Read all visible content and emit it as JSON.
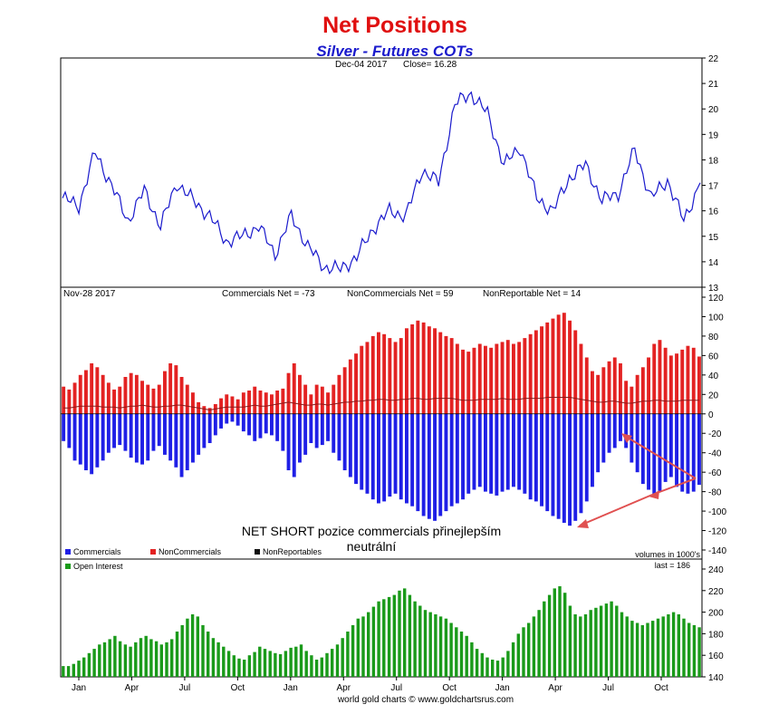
{
  "title": "Net Positions",
  "subtitle": "Silver - Futures COTs",
  "credit": "world gold charts © www.goldchartsrus.com",
  "colors": {
    "title": "#e01010",
    "subtitle": "#1a1acc",
    "price_line": "#1a1acc",
    "commercials": "#1f1fe6",
    "noncommercials": "#e32222",
    "nonreportables": "#111111",
    "open_interest": "#1a9a1a",
    "annotation_arrow": "#e05050"
  },
  "chart_data": [
    {
      "type": "line",
      "panel": "price",
      "header_date": "Dec-04  2017",
      "header_close": "Close= 16.28",
      "ylim": [
        13,
        22
      ],
      "yticks": [
        "13",
        "14",
        "15",
        "16",
        "17",
        "18",
        "19",
        "20",
        "21",
        "22"
      ],
      "grid": false,
      "series": [
        {
          "x": [
            0,
            4,
            8,
            12,
            16,
            20,
            24,
            28,
            32,
            36,
            40,
            44,
            48,
            52,
            56,
            60,
            64,
            68,
            72,
            76,
            80,
            84,
            88,
            92,
            96,
            100,
            104,
            108,
            112,
            116,
            120,
            124,
            128,
            132,
            136,
            140,
            144,
            148,
            152,
            156
          ],
          "values": [
            16.5,
            16.2,
            18.3,
            17.0,
            15.6,
            16.8,
            15.4,
            17.1,
            16.4,
            15.8,
            14.8,
            15.0,
            15.4,
            14.3,
            15.8,
            14.6,
            13.8,
            13.7,
            14.2,
            15.3,
            16.0,
            15.8,
            17.6,
            17.1,
            20.2,
            20.6,
            19.8,
            17.8,
            18.5,
            16.5,
            16.0,
            17.3,
            17.8,
            16.4,
            16.7,
            18.4,
            16.5,
            17.2,
            15.6,
            17.1
          ]
        }
      ]
    },
    {
      "type": "bar",
      "panel": "net_positions",
      "header_date": "Nov-28  2017",
      "header_values": [
        "Commercials Net = -73",
        "NonCommercials Net = 59",
        "NonReportable Net = 14"
      ],
      "ylim": [
        -140,
        120
      ],
      "yticks": [
        "-140",
        "-120",
        "-100",
        "-80",
        "-60",
        "-40",
        "-20",
        "0",
        "20",
        "40",
        "60",
        "80",
        "100",
        "120"
      ],
      "legend": [
        "Commercials",
        "NonCommercials",
        "NonReportables"
      ],
      "legend_position": "bottom-left",
      "volume_note": "volumes in 1000's",
      "annotation": "NET SHORT pozice commercials přinejlepším neutrální",
      "series": [
        {
          "name": "Commercials",
          "values": [
            -28,
            -35,
            -48,
            -52,
            -58,
            -62,
            -55,
            -48,
            -40,
            -35,
            -32,
            -38,
            -45,
            -50,
            -52,
            -48,
            -38,
            -33,
            -42,
            -48,
            -55,
            -65,
            -58,
            -50,
            -42,
            -35,
            -30,
            -22,
            -15,
            -10,
            -8,
            -12,
            -18,
            -22,
            -28,
            -25,
            -20,
            -22,
            -28,
            -38,
            -58,
            -65,
            -50,
            -42,
            -30,
            -35,
            -32,
            -28,
            -40,
            -48,
            -58,
            -65,
            -72,
            -78,
            -82,
            -88,
            -92,
            -90,
            -85,
            -82,
            -88,
            -92,
            -95,
            -100,
            -105,
            -108,
            -110,
            -105,
            -100,
            -95,
            -92,
            -88,
            -82,
            -78,
            -75,
            -80,
            -82,
            -84,
            -80,
            -78,
            -75,
            -78,
            -82,
            -88,
            -90,
            -95,
            -100,
            -105,
            -108,
            -112,
            -115,
            -110,
            -102,
            -90,
            -75,
            -60,
            -50,
            -40,
            -35,
            -28,
            -35,
            -50,
            -60,
            -72,
            -78,
            -85,
            -80,
            -70,
            -65,
            -75,
            -80,
            -82,
            -80,
            -73
          ]
        },
        {
          "name": "NonCommercials",
          "values": [
            28,
            25,
            32,
            40,
            45,
            52,
            48,
            40,
            32,
            25,
            28,
            38,
            42,
            40,
            34,
            30,
            26,
            30,
            44,
            52,
            50,
            38,
            30,
            22,
            12,
            8,
            6,
            10,
            16,
            20,
            18,
            15,
            22,
            24,
            28,
            24,
            22,
            20,
            24,
            26,
            42,
            52,
            40,
            30,
            20,
            30,
            28,
            22,
            30,
            40,
            48,
            56,
            62,
            70,
            74,
            80,
            84,
            82,
            78,
            74,
            78,
            88,
            92,
            96,
            94,
            90,
            88,
            84,
            80,
            78,
            72,
            66,
            64,
            68,
            72,
            70,
            68,
            72,
            74,
            76,
            72,
            74,
            78,
            82,
            86,
            90,
            94,
            98,
            102,
            104,
            96,
            86,
            72,
            58,
            44,
            40,
            48,
            54,
            58,
            52,
            34,
            28,
            40,
            48,
            58,
            72,
            76,
            68,
            60,
            62,
            66,
            70,
            68,
            59
          ]
        },
        {
          "name": "NonReportables",
          "values": [
            6,
            6,
            7,
            8,
            8,
            8,
            8,
            7,
            7,
            7,
            6,
            7,
            8,
            8,
            9,
            8,
            7,
            7,
            8,
            8,
            9,
            9,
            8,
            7,
            6,
            5,
            4,
            5,
            6,
            7,
            7,
            7,
            7,
            8,
            9,
            8,
            8,
            9,
            10,
            11,
            12,
            11,
            10,
            9,
            9,
            10,
            10,
            9,
            10,
            11,
            12,
            12,
            13,
            13,
            14,
            14,
            15,
            15,
            14,
            14,
            15,
            15,
            16,
            16,
            15,
            15,
            16,
            16,
            16,
            16,
            15,
            14,
            14,
            14,
            15,
            15,
            15,
            15,
            16,
            15,
            15,
            15,
            16,
            16,
            16,
            16,
            17,
            17,
            17,
            17,
            17,
            16,
            15,
            14,
            13,
            12,
            12,
            13,
            13,
            12,
            11,
            11,
            12,
            13,
            13,
            14,
            14,
            13,
            13,
            13,
            14,
            14,
            14,
            14
          ]
        }
      ]
    },
    {
      "type": "bar",
      "panel": "open_interest",
      "legend": [
        "Open Interest"
      ],
      "legend_position": "top-left",
      "last_note": "last = 186",
      "ylim": [
        140,
        240
      ],
      "yticks": [
        "140",
        "160",
        "180",
        "200",
        "220",
        "240"
      ],
      "x_labels": [
        "Jan",
        "Apr",
        "Jul",
        "Oct",
        "Jan",
        "Apr",
        "Jul",
        "Oct",
        "Jan",
        "Apr",
        "Jul",
        "Oct"
      ],
      "series": [
        {
          "name": "Open Interest",
          "values": [
            150,
            150,
            152,
            155,
            158,
            162,
            166,
            170,
            172,
            175,
            178,
            173,
            170,
            168,
            172,
            176,
            178,
            175,
            173,
            170,
            172,
            175,
            182,
            188,
            194,
            198,
            196,
            188,
            182,
            176,
            172,
            168,
            164,
            160,
            157,
            156,
            160,
            163,
            168,
            166,
            164,
            162,
            161,
            164,
            167,
            168,
            170,
            164,
            160,
            156,
            158,
            162,
            166,
            170,
            176,
            182,
            188,
            194,
            196,
            200,
            205,
            210,
            212,
            214,
            216,
            220,
            222,
            216,
            210,
            206,
            202,
            200,
            198,
            196,
            194,
            190,
            186,
            182,
            178,
            172,
            166,
            162,
            158,
            156,
            155,
            158,
            164,
            172,
            180,
            186,
            190,
            196,
            202,
            210,
            216,
            222,
            224,
            218,
            206,
            198,
            196,
            198,
            202,
            204,
            206,
            208,
            210,
            206,
            200,
            196,
            192,
            190,
            188,
            190,
            192,
            194,
            196,
            198,
            200,
            198,
            194,
            190,
            188,
            186
          ]
        }
      ]
    }
  ]
}
